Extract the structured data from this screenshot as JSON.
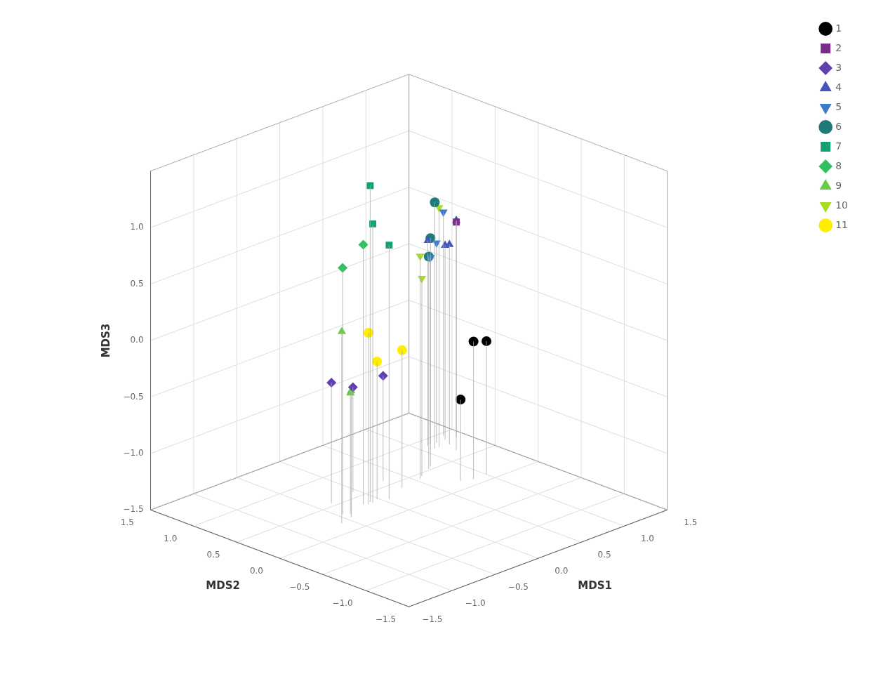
{
  "chart_data": {
    "type": "scatter",
    "xlabel": "MDS1",
    "ylabel": "MDS2",
    "zlabel": "MDS3",
    "xlim": [
      -1.5,
      1.5
    ],
    "ylim": [
      -1.5,
      1.5
    ],
    "zlim": [
      -1.5,
      1.5
    ],
    "xticks": [
      {
        "value": -1.5,
        "label": "−1.5"
      },
      {
        "value": -1.0,
        "label": "−1.0"
      },
      {
        "value": -0.5,
        "label": "−0.5"
      },
      {
        "value": 0.0,
        "label": "0.0"
      },
      0.5,
      {
        "value": 1.0,
        "label": "1.0"
      },
      1.5
    ],
    "yticks": [
      {
        "value": -1.5,
        "label": "−1.5"
      },
      {
        "value": -1.0,
        "label": "−1.0"
      },
      {
        "value": -0.5,
        "label": "−0.5"
      },
      {
        "value": 0.0,
        "label": "0.0"
      },
      0.5,
      {
        "value": 1.0,
        "label": "1.0"
      },
      1.5
    ],
    "zticks": [
      {
        "value": -1.5,
        "label": "−1.5"
      },
      {
        "value": -1.0,
        "label": "−1.0"
      },
      {
        "value": -0.5,
        "label": "−0.5"
      },
      {
        "value": 0.0,
        "label": "0.0"
      },
      0.5,
      {
        "value": 1.0,
        "label": "1.0"
      }
    ],
    "grid": true,
    "legend": "right",
    "series": [
      {
        "name": "1",
        "color": "#000000",
        "marker": "circle",
        "x": [
          0.85,
          1.0,
          0.75
        ],
        "y": [
          0.1,
          0.1,
          0.15
        ],
        "z": [
          -0.28,
          -0.32,
          -0.78
        ]
      },
      {
        "name": "2",
        "color": "#7B2D8B",
        "marker": "square",
        "x": [
          1.2
        ],
        "y": [
          0.65
        ],
        "z": [
          0.52
        ]
      },
      {
        "name": "3",
        "color": "#6040B0",
        "marker": "diamond",
        "x": [
          -0.35,
          -0.05,
          0.3
        ],
        "y": [
          0.55,
          0.6,
          0.6
        ],
        "z": [
          -0.43,
          -0.57,
          -0.57
        ]
      },
      {
        "name": "4",
        "color": "#4455BB",
        "marker": "triangle",
        "x": [
          1.4,
          1.25,
          1.3,
          1.1
        ],
        "y": [
          0.85,
          0.78,
          0.88,
          0.88
        ],
        "z": [
          0.42,
          0.27,
          0.22,
          0.32
        ]
      },
      {
        "name": "5",
        "color": "#3B7BC8",
        "marker": "triangle_down",
        "x": [
          1.35,
          1.2,
          1.15
        ],
        "y": [
          0.95,
          0.88,
          0.9
        ],
        "z": [
          0.48,
          0.27,
          0.15
        ]
      },
      {
        "name": "6",
        "color": "#217A7A",
        "marker": "circle",
        "x": [
          0.8,
          0.75,
          1.1
        ],
        "y": [
          0.55,
          0.52,
          0.8
        ],
        "z": [
          0.52,
          0.38,
          0.68
        ]
      },
      {
        "name": "7",
        "color": "#15A070",
        "marker": "square",
        "x": [
          -0.1,
          0.05,
          -0.1
        ],
        "y": [
          0.32,
          0.28,
          0.35
        ],
        "z": [
          0.97,
          0.75,
          1.3
        ]
      },
      {
        "name": "8",
        "color": "#30C060",
        "marker": "diamond",
        "x": [
          -0.45,
          -0.18
        ],
        "y": [
          0.32,
          0.35
        ],
        "z": [
          0.68,
          0.8
        ]
      },
      {
        "name": "9",
        "color": "#66CC44",
        "marker": "triangle",
        "x": [
          -0.6,
          -0.45,
          -0.4
        ],
        "y": [
          0.18,
          0.22,
          0.28
        ],
        "z": [
          0.2,
          -0.38,
          -0.43
        ]
      },
      {
        "name": "10",
        "color": "#AADD22",
        "marker": "triangle_down",
        "x": [
          0.55,
          0.6,
          1.15
        ],
        "y": [
          0.42,
          0.45,
          0.8
        ],
        "z": [
          0.47,
          0.25,
          0.62
        ]
      },
      {
        "name": "11",
        "color": "#FFEE00",
        "marker": "circle",
        "x": [
          -0.15,
          -0.02,
          0.3
        ],
        "y": [
          0.32,
          0.35,
          0.38
        ],
        "z": [
          0.02,
          -0.28,
          -0.28
        ]
      }
    ]
  }
}
